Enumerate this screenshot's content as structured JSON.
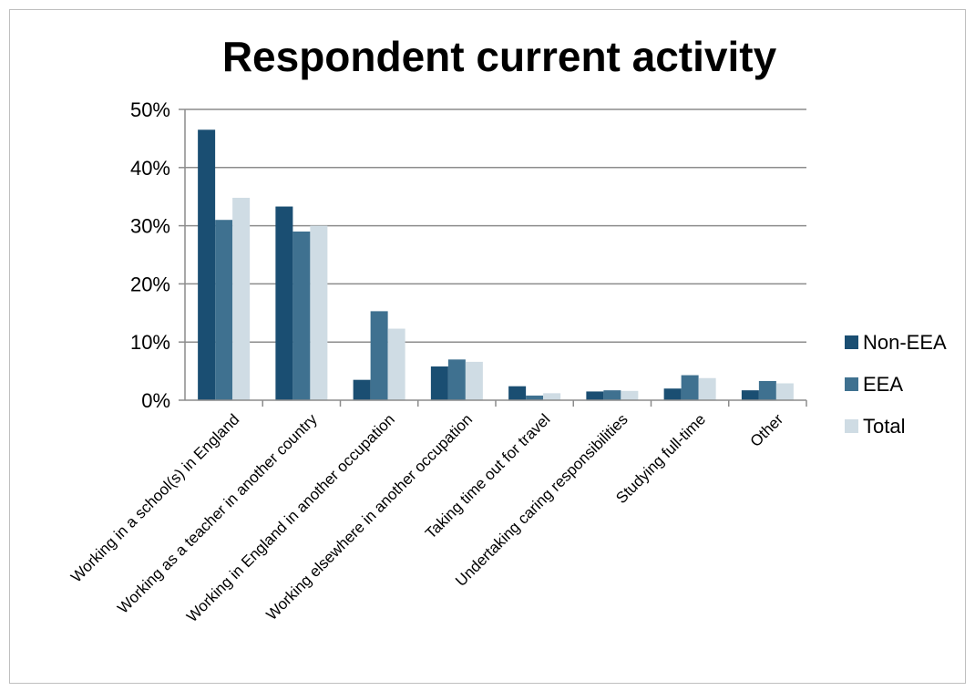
{
  "chart_data": {
    "type": "bar",
    "title": "Respondent current activity",
    "xlabel": "",
    "ylabel": "",
    "ylim": [
      0,
      50
    ],
    "yticks": [
      "0%",
      "10%",
      "20%",
      "30%",
      "40%",
      "50%"
    ],
    "grid": true,
    "legend_position": "right",
    "categories": [
      "Working in a school(s) in England",
      "Working as a teacher in another country",
      "Working in England in another occupation",
      "Working elsewhere in another occupation",
      "Taking time out for travel",
      "Undertaking caring responsibilities",
      "Studying full-time",
      "Other"
    ],
    "series": [
      {
        "name": "Non-EEA",
        "color": "#1a4e72",
        "values": [
          46.5,
          33.3,
          3.5,
          5.8,
          2.4,
          1.5,
          2.0,
          1.7
        ]
      },
      {
        "name": "EEA",
        "color": "#3f7190",
        "values": [
          31.0,
          29.0,
          15.3,
          7.0,
          0.8,
          1.7,
          4.3,
          3.3
        ]
      },
      {
        "name": "Total",
        "color": "#cfdce4",
        "values": [
          34.8,
          30.0,
          12.3,
          6.6,
          1.2,
          1.6,
          3.8,
          2.9
        ]
      }
    ]
  }
}
